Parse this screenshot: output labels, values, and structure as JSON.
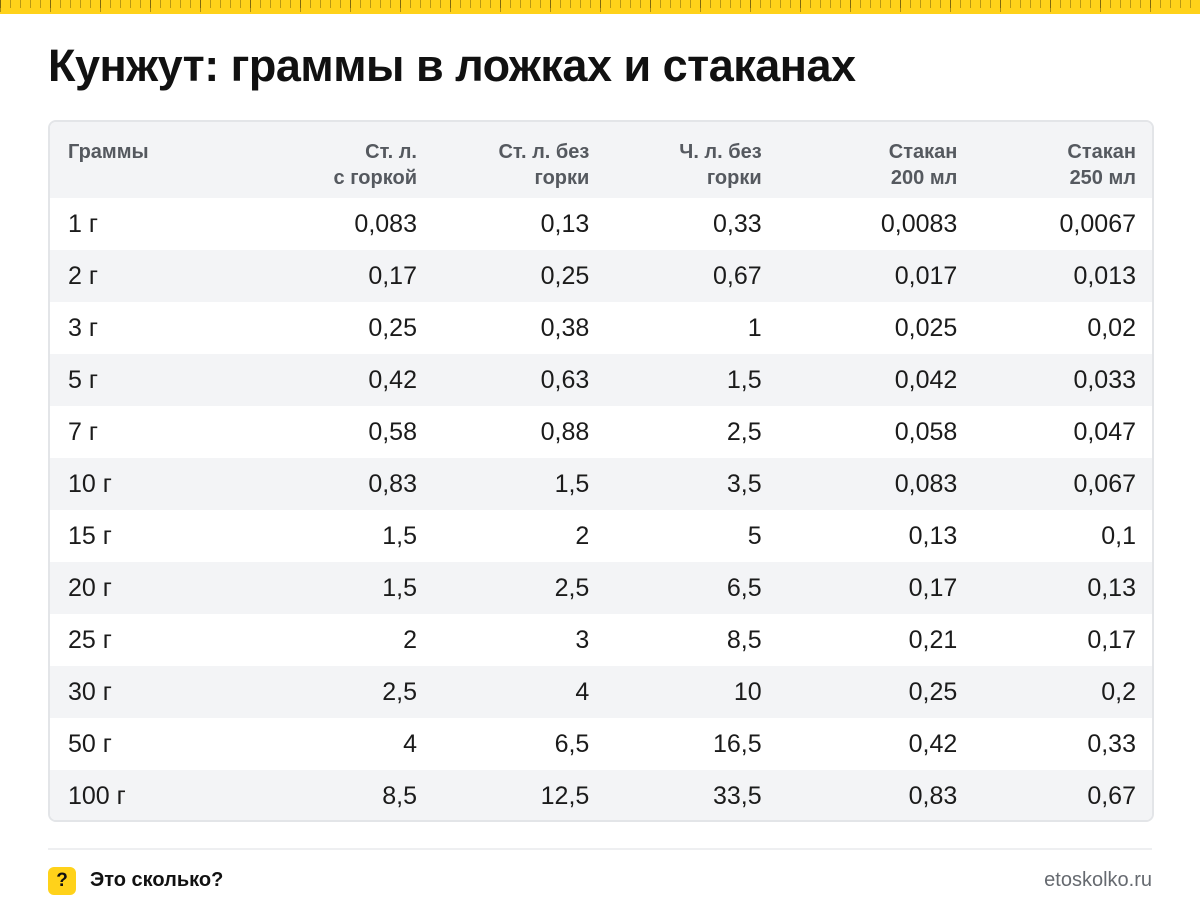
{
  "title": "Кунжут: граммы в ложках и стаканах",
  "table": {
    "headers": [
      {
        "line1": "Граммы",
        "line2": ""
      },
      {
        "line1": "Ст. л.",
        "line2": "с горкой"
      },
      {
        "line1": "Ст. л. без",
        "line2": "горки"
      },
      {
        "line1": "Ч. л. без",
        "line2": "горки"
      },
      {
        "line1": "Стакан",
        "line2": "200 мл"
      },
      {
        "line1": "Стакан",
        "line2": "250 мл"
      }
    ],
    "rows": [
      [
        "1 г",
        "0,083",
        "0,13",
        "0,33",
        "0,0083",
        "0,0067"
      ],
      [
        "2 г",
        "0,17",
        "0,25",
        "0,67",
        "0,017",
        "0,013"
      ],
      [
        "3 г",
        "0,25",
        "0,38",
        "1",
        "0,025",
        "0,02"
      ],
      [
        "5 г",
        "0,42",
        "0,63",
        "1,5",
        "0,042",
        "0,033"
      ],
      [
        "7 г",
        "0,58",
        "0,88",
        "2,5",
        "0,058",
        "0,047"
      ],
      [
        "10 г",
        "0,83",
        "1,5",
        "3,5",
        "0,083",
        "0,067"
      ],
      [
        "15 г",
        "1,5",
        "2",
        "5",
        "0,13",
        "0,1"
      ],
      [
        "20 г",
        "1,5",
        "2,5",
        "6,5",
        "0,17",
        "0,13"
      ],
      [
        "25 г",
        "2",
        "3",
        "8,5",
        "0,21",
        "0,17"
      ],
      [
        "30 г",
        "2,5",
        "4",
        "10",
        "0,25",
        "0,2"
      ],
      [
        "50 г",
        "4",
        "6,5",
        "16,5",
        "0,42",
        "0,33"
      ],
      [
        "100 г",
        "8,5",
        "12,5",
        "33,5",
        "0,83",
        "0,67"
      ]
    ]
  },
  "footer": {
    "badge": "?",
    "brand": "Это сколько?",
    "site": "etoskolko.ru"
  },
  "colors": {
    "accent": "#ffd21a",
    "header_bg": "#f3f4f6",
    "stripe_bg": "#f3f4f6",
    "border": "#e3e5e8"
  }
}
